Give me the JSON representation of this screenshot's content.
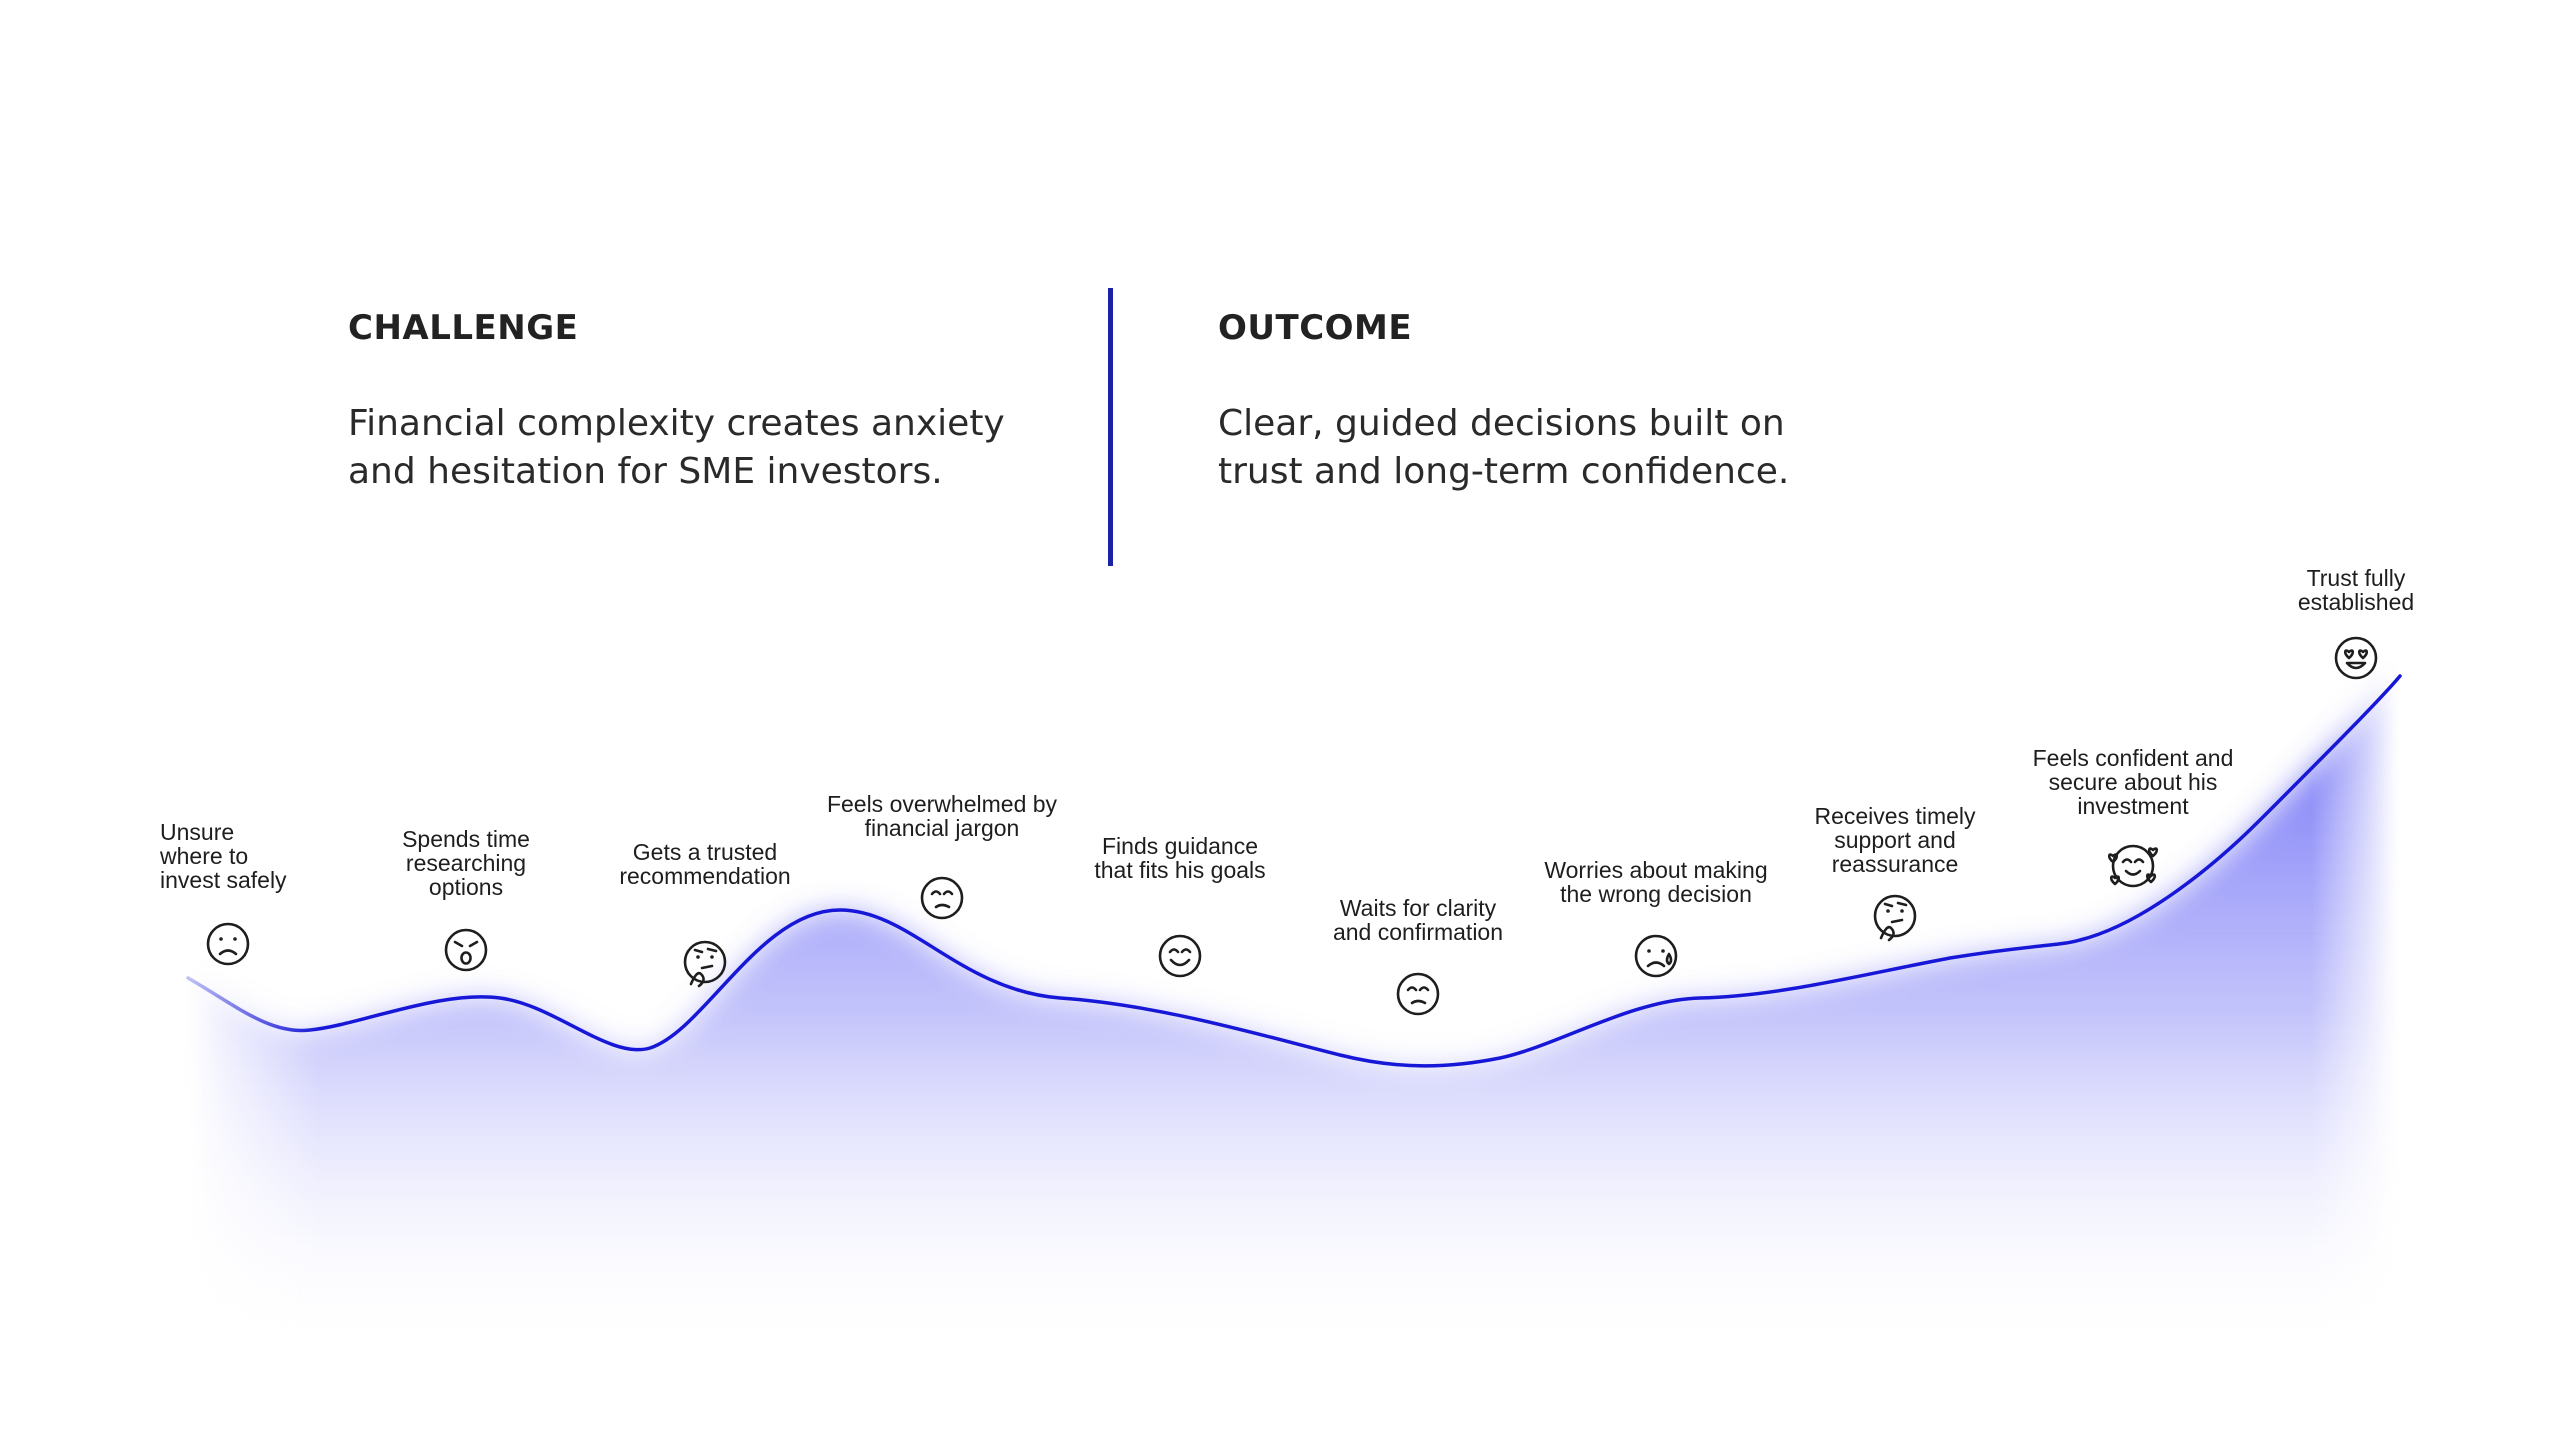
{
  "challenge": {
    "heading": "CHALLENGE",
    "line1": "Financial complexity creates anxiety",
    "line2": "and hesitation for SME investors."
  },
  "outcome": {
    "heading": "OUTCOME",
    "line1": "Clear, guided decisions built on",
    "line2": "trust and long-term confidence."
  },
  "colors": {
    "accent": "#1c22a8",
    "curve": "#1717d8",
    "fill": "#5b5bf5"
  },
  "steps": [
    {
      "lines": [
        "Unsure",
        "where to",
        "invest safely"
      ],
      "icon": "sad-face-icon"
    },
    {
      "lines": [
        "Spends time",
        "researching",
        "options"
      ],
      "icon": "surprised-face-icon"
    },
    {
      "lines": [
        "Gets a trusted",
        "recommendation"
      ],
      "icon": "thinking-face-icon"
    },
    {
      "lines": [
        "Feels overwhelmed by",
        "financial jargon"
      ],
      "icon": "confused-face-icon"
    },
    {
      "lines": [
        "Finds guidance",
        "that fits his goals"
      ],
      "icon": "smiling-face-icon"
    },
    {
      "lines": [
        "Waits for clarity",
        "and confirmation"
      ],
      "icon": "confused-face-icon"
    },
    {
      "lines": [
        "Worries about making",
        "the wrong decision"
      ],
      "icon": "worried-face-icon"
    },
    {
      "lines": [
        "Receives timely",
        "support and",
        "reassurance"
      ],
      "icon": "thinking-face-icon"
    },
    {
      "lines": [
        "Feels confident and",
        "secure about his",
        "investment"
      ],
      "icon": "smiling-face-with-hearts-icon"
    },
    {
      "lines": [
        "Trust fully",
        "established"
      ],
      "icon": "heart-eyes-face-icon"
    }
  ]
}
